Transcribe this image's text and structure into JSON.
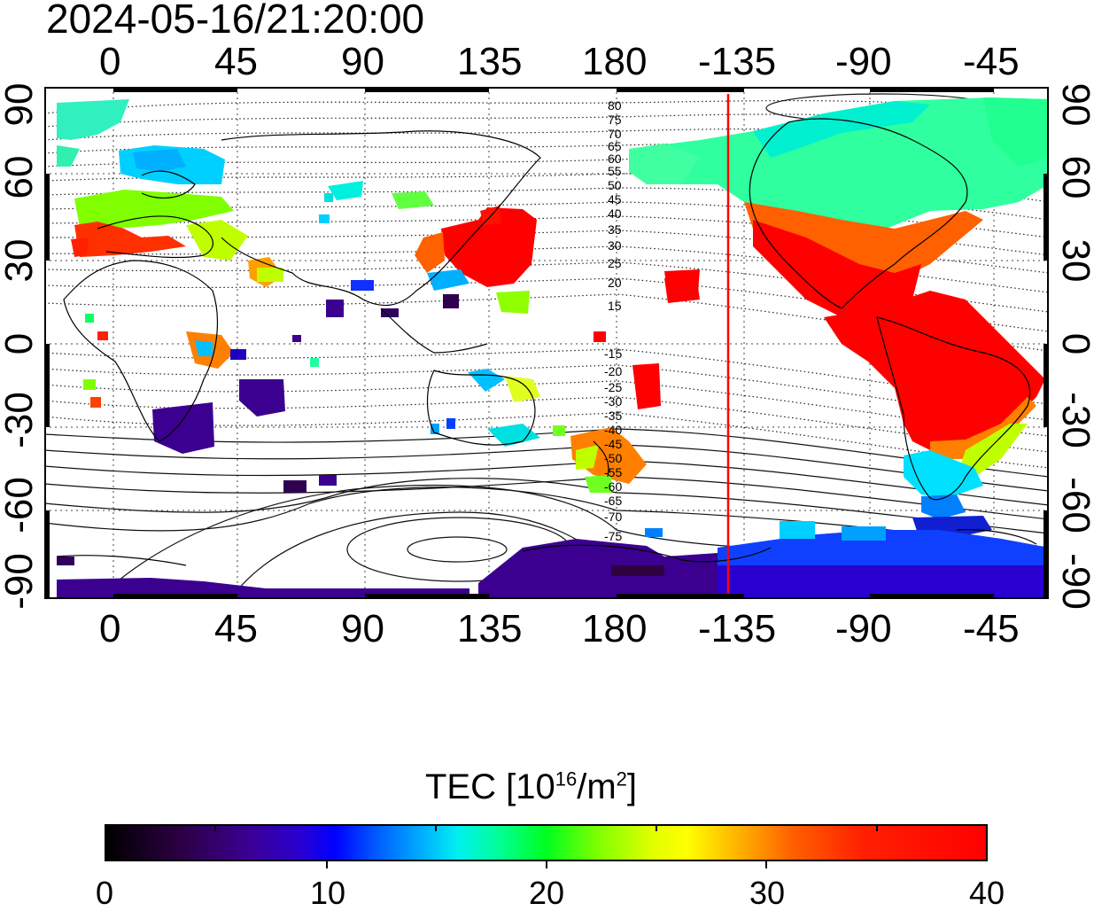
{
  "timestamp": "2024-05-16/21:20:00",
  "x_axis_top": [
    "0",
    "45",
    "90",
    "135",
    "180",
    "-135",
    "-90",
    "-45"
  ],
  "x_axis_bottom": [
    "0",
    "45",
    "90",
    "135",
    "180",
    "-135",
    "-90",
    "-45"
  ],
  "y_axis_left": [
    "90",
    "60",
    "30",
    "0",
    "-30",
    "-60",
    "-90"
  ],
  "y_axis_right": [
    "90",
    "60",
    "30",
    "0",
    "-30",
    "-60",
    "-90"
  ],
  "contour_labels_north": [
    "80",
    "75",
    "70",
    "65",
    "60",
    "55",
    "50",
    "45",
    "40",
    "35",
    "30",
    "25",
    "20",
    "15"
  ],
  "contour_labels_south": [
    "-15",
    "-20",
    "-25",
    "-30",
    "-35",
    "-40",
    "-45",
    "-50",
    "-55",
    "-60",
    "-65",
    "-70",
    "-75"
  ],
  "colorbar": {
    "title_prefix": "TEC  [10",
    "title_exp": "16",
    "title_mid": "/m",
    "title_exp2": "2",
    "title_suffix": "]",
    "labels": [
      "0",
      "10",
      "20",
      "30",
      "40"
    ],
    "min": 0,
    "max": 40
  },
  "colors": {
    "high_tec": "#ff0000",
    "terminator_line": "#ff0000",
    "low_tec": "#3b0090"
  }
}
